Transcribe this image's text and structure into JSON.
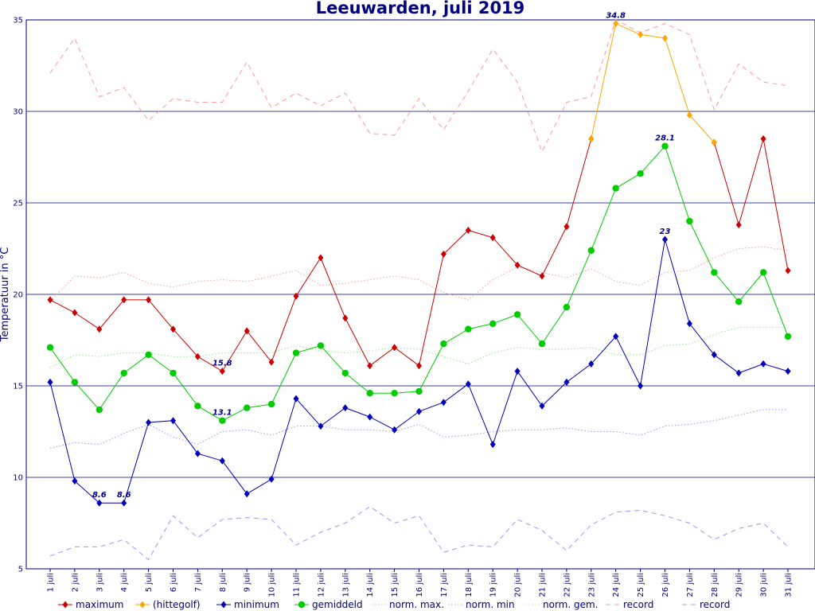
{
  "chart_data": {
    "type": "line",
    "title": "Leeuwarden, juli 2019",
    "ylabel": "Temperatuur in °C",
    "xlabel": "",
    "ylim": [
      5,
      35
    ],
    "yticks": [
      5,
      10,
      15,
      20,
      25,
      30,
      35
    ],
    "grid": true,
    "legend_position": "bottom",
    "categories": [
      "1 juli",
      "2 juli",
      "3 juli",
      "4 juli",
      "5 juli",
      "6 juli",
      "7 juli",
      "8 juli",
      "9 juli",
      "10 juli",
      "11 juli",
      "12 juli",
      "13 juli",
      "14 juli",
      "15 juli",
      "16 juli",
      "17 juli",
      "18 juli",
      "19 juli",
      "20 juli",
      "21 juli",
      "22 juli",
      "23 juli",
      "24 juli",
      "25 juli",
      "26 juli",
      "27 juli",
      "28 juli",
      "29 juli",
      "30 juli",
      "31 juli"
    ],
    "series": [
      {
        "name": "maximum",
        "color": "#cc0000",
        "style": "solid",
        "marker": "diamond",
        "values": [
          19.7,
          19.0,
          18.1,
          19.7,
          19.7,
          18.1,
          16.6,
          15.8,
          18.0,
          16.3,
          19.9,
          22.0,
          18.7,
          16.1,
          17.1,
          16.1,
          22.2,
          23.5,
          23.1,
          21.6,
          21.0,
          23.7,
          28.5,
          null,
          null,
          null,
          null,
          28.3,
          23.8,
          28.5,
          21.3
        ]
      },
      {
        "name": "(hittegolf)",
        "color": "#ffa500",
        "style": "solid",
        "marker": "diamond",
        "values": [
          null,
          null,
          null,
          null,
          null,
          null,
          null,
          null,
          null,
          null,
          null,
          null,
          null,
          null,
          null,
          null,
          null,
          null,
          null,
          null,
          null,
          null,
          28.5,
          34.8,
          34.2,
          34.0,
          29.8,
          28.3,
          null,
          null,
          null
        ]
      },
      {
        "name": "minimum",
        "color": "#0000bb",
        "style": "solid",
        "marker": "diamond",
        "values": [
          15.2,
          9.8,
          8.6,
          8.6,
          13.0,
          13.1,
          11.3,
          10.9,
          9.1,
          9.9,
          14.3,
          12.8,
          13.8,
          13.3,
          12.6,
          13.6,
          14.1,
          15.1,
          11.8,
          15.8,
          13.9,
          15.2,
          16.2,
          17.7,
          15.0,
          23.0,
          18.4,
          16.7,
          15.7,
          16.2,
          15.8
        ]
      },
      {
        "name": "gemiddeld",
        "color": "#00cc00",
        "style": "solid",
        "marker": "circle",
        "values": [
          17.1,
          15.2,
          13.7,
          15.7,
          16.7,
          15.7,
          13.9,
          13.1,
          13.8,
          14.0,
          16.8,
          17.2,
          15.7,
          14.6,
          14.6,
          14.7,
          17.3,
          18.1,
          18.4,
          18.9,
          17.3,
          19.3,
          22.4,
          25.8,
          26.6,
          28.1,
          24.0,
          21.2,
          19.6,
          21.2,
          17.7
        ]
      },
      {
        "name": "norm. max.",
        "color": "#ff9999",
        "style": "dotted",
        "marker": "none",
        "values": [
          19.6,
          21.0,
          20.9,
          21.2,
          20.6,
          20.4,
          20.7,
          20.8,
          20.7,
          21.0,
          21.3,
          20.5,
          20.6,
          20.8,
          21.0,
          20.8,
          20.1,
          19.7,
          20.8,
          21.5,
          21.2,
          20.9,
          21.4,
          20.7,
          20.5,
          21.2,
          21.3,
          22.0,
          22.5,
          22.6,
          22.4
        ]
      },
      {
        "name": "norm. min",
        "color": "#9999ff",
        "style": "dotted",
        "marker": "none",
        "values": [
          11.6,
          11.9,
          11.8,
          12.4,
          12.9,
          12.2,
          11.8,
          12.5,
          12.6,
          12.3,
          12.8,
          12.8,
          12.6,
          12.6,
          12.5,
          12.9,
          12.2,
          12.3,
          12.5,
          12.6,
          12.6,
          12.7,
          12.5,
          12.5,
          12.3,
          12.8,
          12.9,
          13.1,
          13.4,
          13.7,
          13.7
        ]
      },
      {
        "name": "norm. gem.",
        "color": "#88ee88",
        "style": "dotted",
        "marker": "none",
        "values": [
          16.0,
          16.7,
          16.6,
          16.8,
          16.8,
          16.6,
          16.6,
          16.8,
          16.8,
          16.8,
          17.2,
          16.9,
          16.8,
          16.9,
          17.1,
          17.0,
          16.6,
          16.2,
          16.8,
          17.1,
          17.0,
          17.0,
          17.1,
          16.7,
          16.7,
          17.2,
          17.3,
          17.8,
          18.2,
          18.2,
          18.2
        ]
      },
      {
        "name": "record",
        "color": "#ff9999",
        "style": "dashed",
        "marker": "none",
        "values": [
          32.1,
          34.0,
          30.8,
          31.3,
          29.5,
          30.7,
          30.5,
          30.5,
          32.7,
          30.2,
          31.0,
          30.3,
          31.0,
          28.8,
          28.7,
          30.7,
          29.0,
          31.1,
          33.4,
          31.6,
          27.8,
          30.5,
          30.8,
          35.0,
          34.3,
          34.8,
          34.2,
          30.1,
          32.6,
          31.6,
          31.4
        ]
      },
      {
        "name": "record",
        "color": "#9999ff",
        "style": "dashed",
        "marker": "none",
        "values": [
          5.7,
          6.2,
          6.2,
          6.6,
          5.5,
          7.9,
          6.7,
          7.7,
          7.8,
          7.7,
          6.3,
          7.0,
          7.5,
          8.4,
          7.5,
          7.9,
          5.9,
          6.3,
          6.2,
          7.7,
          7.1,
          6.0,
          7.4,
          8.1,
          8.2,
          7.9,
          7.5,
          6.6,
          7.2,
          7.5,
          6.2
        ]
      }
    ],
    "annotations": [
      {
        "text": "8.6",
        "x": "3 juli",
        "y": 8.6
      },
      {
        "text": "8.6",
        "x": "4 juli",
        "y": 8.6
      },
      {
        "text": "15.8",
        "x": "8 juli",
        "y": 15.8
      },
      {
        "text": "13.1",
        "x": "8 juli",
        "y": 13.1
      },
      {
        "text": "34.8",
        "x": "24 juli",
        "y": 34.8
      },
      {
        "text": "28.1",
        "x": "26 juli",
        "y": 28.1
      },
      {
        "text": "23",
        "x": "26 juli",
        "y": 23.0
      }
    ]
  }
}
